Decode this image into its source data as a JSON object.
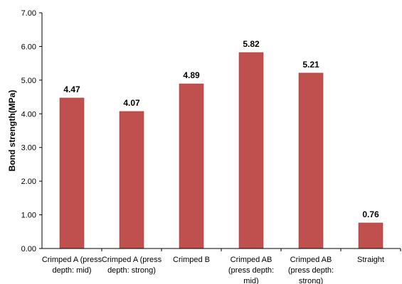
{
  "chart_data": {
    "type": "bar",
    "title": "",
    "xlabel": "",
    "ylabel": "Bond strength(MPa)",
    "categories": [
      [
        "Crimped A (press",
        "depth: mid)"
      ],
      [
        "Crimped A (press",
        "depth: strong)"
      ],
      [
        "Crimped B"
      ],
      [
        "Crimped AB",
        "(press depth:",
        "mid)"
      ],
      [
        "Crimped AB",
        "(press depth:",
        "strong)"
      ],
      [
        "Straight"
      ]
    ],
    "values": [
      4.47,
      4.07,
      4.89,
      5.82,
      5.21,
      0.76
    ],
    "value_labels": [
      "4.47",
      "4.07",
      "4.89",
      "5.82",
      "5.21",
      "0.76"
    ],
    "ylim": [
      0,
      7
    ],
    "yticks": [
      "0.00",
      "1.00",
      "2.00",
      "3.00",
      "4.00",
      "5.00",
      "6.00",
      "7.00"
    ],
    "grid": false,
    "legend": "none",
    "bar_color": "#c0504d",
    "bar_edge_color": "#a23f3c"
  }
}
